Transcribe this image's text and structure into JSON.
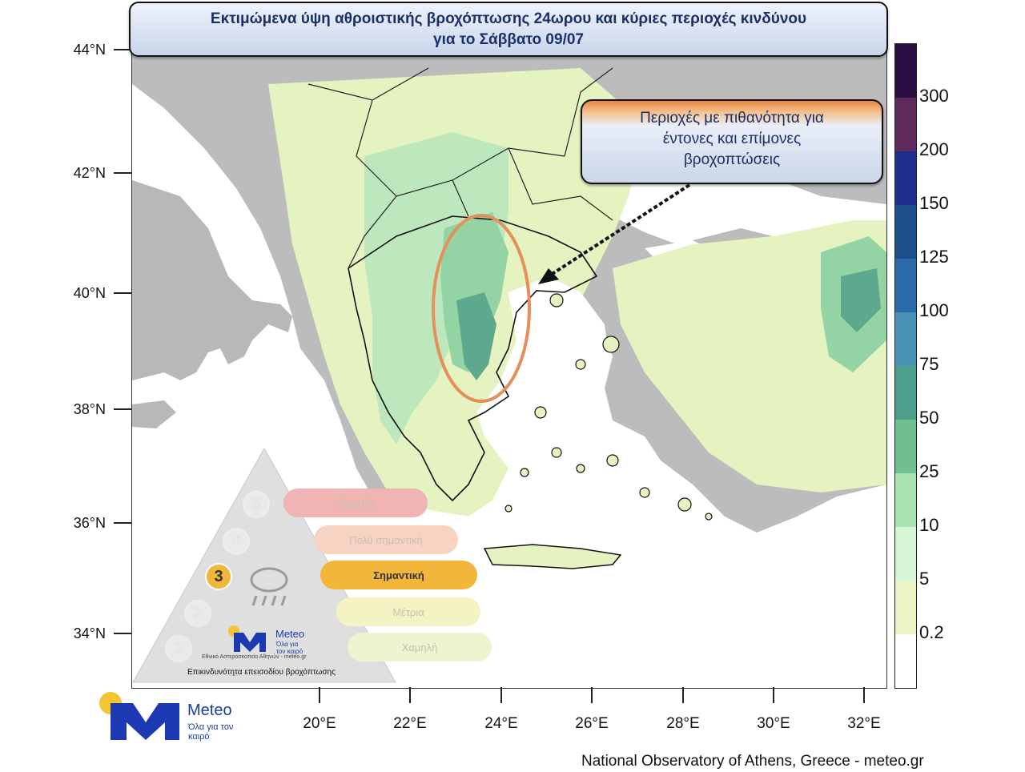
{
  "title": {
    "line1": "Εκτιμώμενα ύψη αθροιστικής βροχόπτωσης 24ωρου και κύριες περιοχές κινδύνου",
    "line2": "για το Σάββατο 09/07"
  },
  "callout": {
    "line1": "Περιοχές με πιθανότητα για",
    "line2": "έντονες και επίμονες",
    "line3": "βροχοπτώσεις"
  },
  "axes": {
    "lat_labels": [
      "44°N",
      "42°N",
      "40°N",
      "38°N",
      "36°N",
      "34°N"
    ],
    "lon_labels": [
      "20°E",
      "22°E",
      "24°E",
      "26°E",
      "28°E",
      "30°E",
      "32°E"
    ]
  },
  "colorbar": {
    "labels": [
      "300",
      "200",
      "150",
      "125",
      "100",
      "75",
      "50",
      "25",
      "10",
      "5",
      "0.2"
    ],
    "colors": [
      "#2a0f45",
      "#5e2a5c",
      "#1d2e8f",
      "#1f4f8a",
      "#2a6aaa",
      "#4a93b7",
      "#4e9e8c",
      "#6fbf92",
      "#a9e3b2",
      "#d6f5d5",
      "#eef6c8",
      "#ffffff"
    ]
  },
  "pyramid": {
    "levels": [
      {
        "num": "5",
        "label": "Ακραία",
        "color": "#f1b4b4"
      },
      {
        "num": "4",
        "label": "Πολύ σημαντική",
        "color": "#f7d3c3"
      },
      {
        "num": "3",
        "label": "Σημαντική",
        "color": "#f2b63b"
      },
      {
        "num": "2",
        "label": "Μέτρια",
        "color": "#f4f3c4"
      },
      {
        "num": "1",
        "label": "Χαμηλή",
        "color": "#eef3d0"
      }
    ],
    "logo_text": "Meteo",
    "logo_slogan": "Όλα για τον καιρό",
    "logo_sub": "Εθνικό Αστεροσκοπείο Αθηνών - meteo.gr",
    "caption": "Επικινδυνότητα επεισοδίου βροχόπτωσης"
  },
  "logo": {
    "text": "Meteo",
    "slogan": "Όλα για τον καιρό"
  },
  "credit": "National Observatory of Athens, Greece - meteo.gr"
}
